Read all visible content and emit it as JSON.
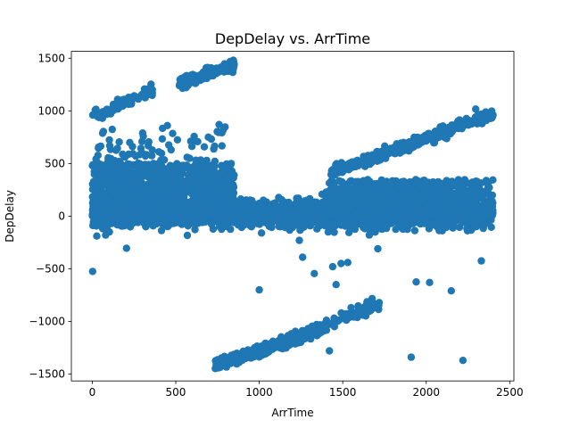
{
  "chart_data": {
    "type": "scatter",
    "title": "DepDelay vs. ArrTime",
    "xlabel": "ArrTime",
    "ylabel": "DepDelay",
    "xlim": [
      -125,
      2525
    ],
    "ylim": [
      -1565,
      1565
    ],
    "xticks": [
      0,
      500,
      1000,
      1500,
      2000,
      2500
    ],
    "yticks": [
      -1500,
      -1000,
      -500,
      0,
      500,
      1000,
      1500
    ],
    "grid": false,
    "color": "#1f77b4",
    "outliers": [
      {
        "x": 2,
        "y": -525
      },
      {
        "x": 205,
        "y": -305
      },
      {
        "x": 1000,
        "y": -700
      },
      {
        "x": 1240,
        "y": -230
      },
      {
        "x": 1260,
        "y": -390
      },
      {
        "x": 1330,
        "y": -545
      },
      {
        "x": 1420,
        "y": -1280
      },
      {
        "x": 1440,
        "y": -480
      },
      {
        "x": 1460,
        "y": -650
      },
      {
        "x": 1490,
        "y": -450
      },
      {
        "x": 1530,
        "y": -440
      },
      {
        "x": 1550,
        "y": -870
      },
      {
        "x": 1710,
        "y": -310
      },
      {
        "x": 1940,
        "y": -625
      },
      {
        "x": 2020,
        "y": -630
      },
      {
        "x": 1910,
        "y": -1340
      },
      {
        "x": 2220,
        "y": -1370
      },
      {
        "x": 2150,
        "y": -710
      },
      {
        "x": 2330,
        "y": -425
      },
      {
        "x": 2400,
        "y": 960
      },
      {
        "x": 850,
        "y": 1440
      },
      {
        "x": 360,
        "y": 1200
      },
      {
        "x": 830,
        "y": 430
      },
      {
        "x": 760,
        "y": 870
      },
      {
        "x": 450,
        "y": 860
      }
    ],
    "clusters": [
      {
        "desc": "dense band near zero",
        "x_range": [
          0,
          2400
        ],
        "y_center": 20,
        "y_spread": 60,
        "count": 2600
      },
      {
        "desc": "positive spread early",
        "x_range": [
          0,
          850
        ],
        "y_min": 0,
        "y_max": 500,
        "count": 1100
      },
      {
        "desc": "positive spread late",
        "x_range": [
          1400,
          2400
        ],
        "y_min": 0,
        "y_max": 350,
        "count": 900
      },
      {
        "desc": "rising line upper left",
        "x_range": [
          0,
          360
        ],
        "y_start": 950,
        "y_end": 1200,
        "count": 90
      },
      {
        "desc": "rising line upper middle",
        "x_range": [
          520,
          850
        ],
        "y_start": 1250,
        "y_end": 1440,
        "count": 110
      },
      {
        "desc": "rising line right",
        "x_range": [
          1430,
          2400
        ],
        "y_start": 410,
        "y_end": 970,
        "count": 420
      },
      {
        "desc": "negative line lower middle",
        "x_range": [
          730,
          1400
        ],
        "y_start": -1420,
        "y_end": -1060,
        "count": 420
      },
      {
        "desc": "negative line lower right",
        "x_range": [
          1380,
          1760
        ],
        "y_start": -1050,
        "y_end": -800,
        "count": 70
      },
      {
        "desc": "scattered mid early",
        "x_range": [
          0,
          800
        ],
        "y_min": 450,
        "y_max": 850,
        "count": 90
      },
      {
        "desc": "scattered mid-low early",
        "x_range": [
          0,
          300
        ],
        "y_min": 300,
        "y_max": 700,
        "count": 40
      }
    ]
  }
}
